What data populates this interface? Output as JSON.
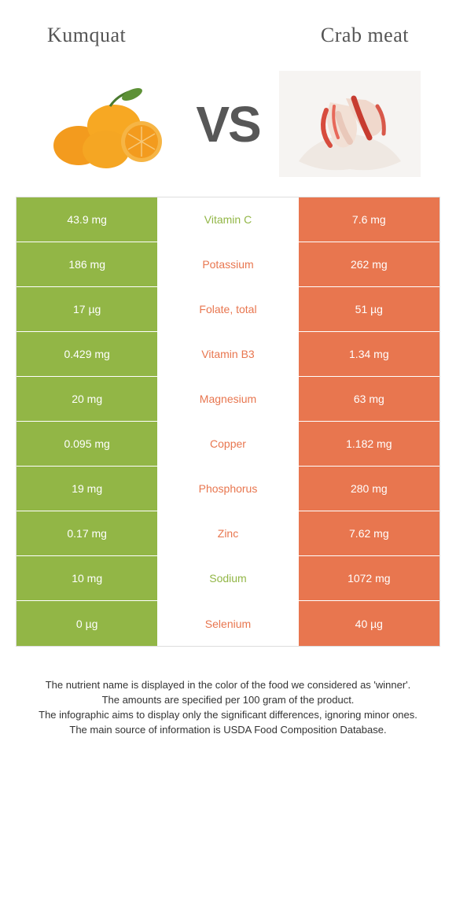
{
  "header": {
    "left_title": "Kumquat",
    "right_title": "Crab meat",
    "vs_text": "VS"
  },
  "colors": {
    "left_bg": "#92b646",
    "right_bg": "#e8764f",
    "winner_left_text": "#92b646",
    "winner_right_text": "#e8764f",
    "border": "#dddddd"
  },
  "rows": [
    {
      "left": "43.9 mg",
      "label": "Vitamin C",
      "right": "7.6 mg",
      "winner": "left"
    },
    {
      "left": "186 mg",
      "label": "Potassium",
      "right": "262 mg",
      "winner": "right"
    },
    {
      "left": "17 µg",
      "label": "Folate, total",
      "right": "51 µg",
      "winner": "right"
    },
    {
      "left": "0.429 mg",
      "label": "Vitamin B3",
      "right": "1.34 mg",
      "winner": "right"
    },
    {
      "left": "20 mg",
      "label": "Magnesium",
      "right": "63 mg",
      "winner": "right"
    },
    {
      "left": "0.095 mg",
      "label": "Copper",
      "right": "1.182 mg",
      "winner": "right"
    },
    {
      "left": "19 mg",
      "label": "Phosphorus",
      "right": "280 mg",
      "winner": "right"
    },
    {
      "left": "0.17 mg",
      "label": "Zinc",
      "right": "7.62 mg",
      "winner": "right"
    },
    {
      "left": "10 mg",
      "label": "Sodium",
      "right": "1072 mg",
      "winner": "left"
    },
    {
      "left": "0 µg",
      "label": "Selenium",
      "right": "40 µg",
      "winner": "right"
    }
  ],
  "footer": {
    "line1": "The nutrient name is displayed in the color of the food we considered as 'winner'.",
    "line2": "The amounts are specified per 100 gram of the product.",
    "line3": "The infographic aims to display only the significant differences, ignoring minor ones.",
    "line4": "The main source of information is USDA Food Composition Database."
  }
}
